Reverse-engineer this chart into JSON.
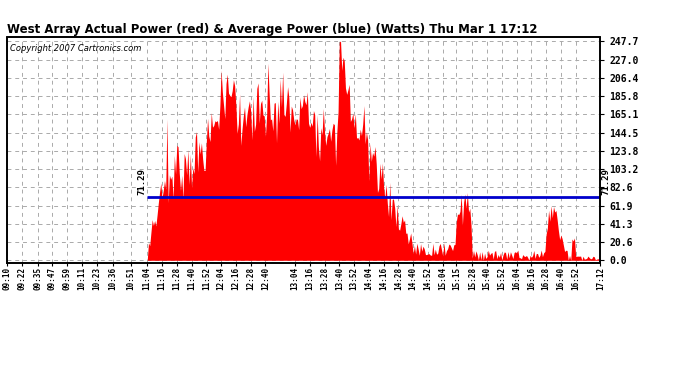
{
  "title": "West Array Actual Power (red) & Average Power (blue) (Watts) Thu Mar 1 17:12",
  "copyright": "Copyright 2007 Cartronics.com",
  "avg_power": 71.29,
  "ymin": -2.5,
  "ymax": 252.0,
  "yticks": [
    0.0,
    20.6,
    41.3,
    61.9,
    82.6,
    103.2,
    123.8,
    144.5,
    165.1,
    185.8,
    206.4,
    227.0,
    247.7
  ],
  "bg_color": "#ffffff",
  "plot_bg": "#ffffff",
  "grid_color": "#aaaaaa",
  "bar_color": "#ff0000",
  "line_color": "#0000cc",
  "x_labels": [
    "09:10",
    "09:22",
    "09:35",
    "09:47",
    "09:59",
    "10:11",
    "10:23",
    "10:36",
    "10:51",
    "11:04",
    "11:16",
    "11:28",
    "11:40",
    "11:52",
    "12:04",
    "12:16",
    "12:28",
    "12:40",
    "13:04",
    "13:16",
    "13:28",
    "13:40",
    "13:52",
    "14:04",
    "14:16",
    "14:28",
    "14:40",
    "14:52",
    "15:04",
    "15:15",
    "15:28",
    "15:40",
    "15:52",
    "16:04",
    "16:16",
    "16:28",
    "16:40",
    "16:52",
    "17:12"
  ],
  "avg_line_start": "11:04",
  "avg_line_end": "17:12",
  "time_start": "09:10",
  "time_end": "17:12"
}
